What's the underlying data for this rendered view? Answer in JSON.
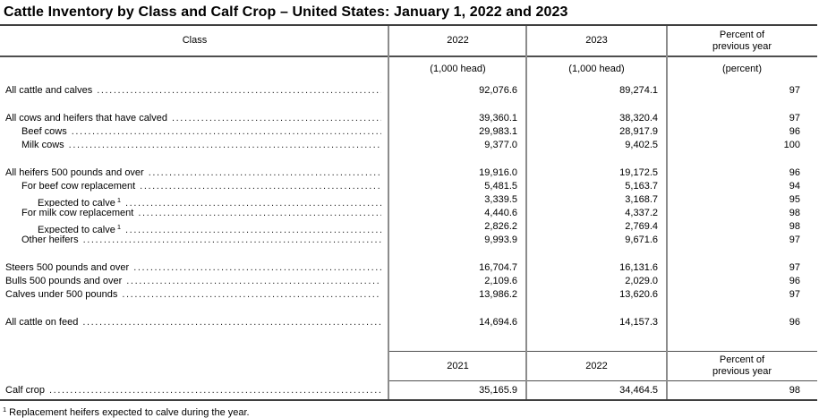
{
  "title": "Cattle Inventory by Class and Calf Crop – United States: January 1, 2022 and 2023",
  "colors": {
    "background": "#ffffff",
    "text": "#000000",
    "major_rule": "#3f3f3f",
    "minor_rule": "#8c8c8c"
  },
  "table": {
    "header": {
      "class_label": "Class",
      "year1": "2022",
      "year2": "2023",
      "percent": "Percent of\nprevious year"
    },
    "units": {
      "col1": "(1,000 head)",
      "col2": "(1,000 head)",
      "col3": "(percent)"
    },
    "sections": [
      {
        "rows": [
          {
            "label": "All cattle and calves",
            "indent": 0,
            "v1": "92,076.6",
            "v2": "89,274.1",
            "pct": "97"
          }
        ]
      },
      {
        "rows": [
          {
            "label": "All cows and heifers that have calved",
            "indent": 0,
            "v1": "39,360.1",
            "v2": "38,320.4",
            "pct": "97"
          },
          {
            "label": "Beef cows",
            "indent": 1,
            "v1": "29,983.1",
            "v2": "28,917.9",
            "pct": "96"
          },
          {
            "label": "Milk cows",
            "indent": 1,
            "v1": "9,377.0",
            "v2": "9,402.5",
            "pct": "100"
          }
        ]
      },
      {
        "rows": [
          {
            "label": "All heifers 500 pounds and over",
            "indent": 0,
            "v1": "19,916.0",
            "v2": "19,172.5",
            "pct": "96"
          },
          {
            "label": "For beef cow replacement",
            "indent": 1,
            "v1": "5,481.5",
            "v2": "5,163.7",
            "pct": "94"
          },
          {
            "label": "Expected to calve",
            "sup": "1",
            "indent": 2,
            "v1": "3,339.5",
            "v2": "3,168.7",
            "pct": "95"
          },
          {
            "label": "For milk cow replacement",
            "indent": 1,
            "v1": "4,440.6",
            "v2": "4,337.2",
            "pct": "98"
          },
          {
            "label": "Expected to calve",
            "sup": "1",
            "indent": 2,
            "v1": "2,826.2",
            "v2": "2,769.4",
            "pct": "98"
          },
          {
            "label": "Other heifers",
            "indent": 1,
            "v1": "9,993.9",
            "v2": "9,671.6",
            "pct": "97"
          }
        ]
      },
      {
        "rows": [
          {
            "label": "Steers 500 pounds and over",
            "indent": 0,
            "v1": "16,704.7",
            "v2": "16,131.6",
            "pct": "97"
          },
          {
            "label": "Bulls 500 pounds and over",
            "indent": 0,
            "v1": "2,109.6",
            "v2": "2,029.0",
            "pct": "96"
          },
          {
            "label": "Calves under 500 pounds",
            "indent": 0,
            "v1": "13,986.2",
            "v2": "13,620.6",
            "pct": "97"
          }
        ]
      },
      {
        "rows": [
          {
            "label": "All cattle on feed",
            "indent": 0,
            "v1": "14,694.6",
            "v2": "14,157.3",
            "pct": "96"
          }
        ]
      }
    ],
    "second_header": {
      "year1": "2021",
      "year2": "2022",
      "percent": "Percent of\nprevious year"
    },
    "calf_crop": {
      "label": "Calf crop",
      "indent": 0,
      "v1": "35,165.9",
      "v2": "34,464.5",
      "pct": "98"
    }
  },
  "footnote": {
    "marker": "1",
    "text": "Replacement heifers expected to calve during the year."
  }
}
